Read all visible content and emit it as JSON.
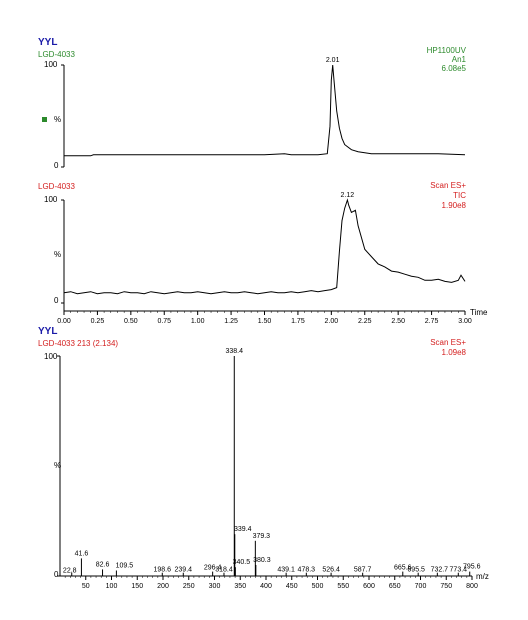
{
  "header": {
    "org": "YYL"
  },
  "panel1": {
    "sample": "LGD-4033",
    "detector": "HP1100UV",
    "channel": "An1",
    "intensity": "6.08e5",
    "peak_label": "2.01",
    "y_top": "100",
    "y_mid": "%",
    "y_zero": "0",
    "legend_color": "#2c8a2c"
  },
  "panel2": {
    "sample": "LGD-4033",
    "scan": "Scan ES+",
    "mode": "TIC",
    "intensity": "1.90e8",
    "peak_label": "2.12",
    "y_top": "100",
    "y_mid": "%",
    "y_zero": "0",
    "x_title": "Time"
  },
  "panel3": {
    "org": "YYL",
    "sample": "LGD-4033 213 (2.134)",
    "scan": "Scan ES+",
    "intensity": "1.09e8",
    "y_top": "100",
    "y_mid": "%",
    "y_zero": "0",
    "x_title": "m/z"
  },
  "chart_data": [
    {
      "type": "line",
      "title": "LGD-4033 HP1100UV An1",
      "xlim": [
        0,
        3.0
      ],
      "ylim": [
        0,
        100
      ],
      "x": [
        0.0,
        0.2,
        0.22,
        0.5,
        1.0,
        1.5,
        1.65,
        1.7,
        1.9,
        1.97,
        1.99,
        2.0,
        2.01,
        2.02,
        2.04,
        2.06,
        2.08,
        2.1,
        2.15,
        2.2,
        2.3,
        2.5,
        2.8,
        3.0
      ],
      "y": [
        11,
        11,
        12,
        12,
        12,
        12,
        13,
        12,
        12,
        13,
        40,
        85,
        100,
        85,
        55,
        38,
        28,
        22,
        17,
        15,
        13,
        13,
        13,
        12
      ],
      "annotations": [
        {
          "x": 2.01,
          "label": "2.01"
        }
      ]
    },
    {
      "type": "line",
      "title": "LGD-4033 Scan ES+ TIC",
      "xlabel": "Time",
      "xlim": [
        0,
        3.0
      ],
      "ylim": [
        0,
        100
      ],
      "xticks": [
        "0.00",
        "0.25",
        "0.50",
        "0.75",
        "1.00",
        "1.25",
        "1.50",
        "1.75",
        "2.00",
        "2.25",
        "2.50",
        "2.75",
        "3.00"
      ],
      "x": [
        0.0,
        0.05,
        0.1,
        0.15,
        0.2,
        0.25,
        0.3,
        0.35,
        0.4,
        0.45,
        0.5,
        0.55,
        0.6,
        0.65,
        0.7,
        0.75,
        0.8,
        0.85,
        0.9,
        0.95,
        1.0,
        1.05,
        1.1,
        1.15,
        1.2,
        1.25,
        1.3,
        1.35,
        1.4,
        1.45,
        1.5,
        1.55,
        1.6,
        1.65,
        1.7,
        1.75,
        1.8,
        1.85,
        1.9,
        1.95,
        2.0,
        2.04,
        2.06,
        2.08,
        2.1,
        2.12,
        2.13,
        2.15,
        2.18,
        2.2,
        2.25,
        2.3,
        2.35,
        2.4,
        2.45,
        2.5,
        2.55,
        2.6,
        2.65,
        2.7,
        2.75,
        2.8,
        2.85,
        2.9,
        2.95,
        2.97,
        3.0
      ],
      "y": [
        10,
        11,
        9,
        10,
        11,
        9,
        10,
        10,
        9,
        11,
        10,
        10,
        9,
        11,
        10,
        9,
        10,
        11,
        10,
        10,
        11,
        10,
        9,
        10,
        11,
        10,
        10,
        11,
        10,
        9,
        10,
        11,
        10,
        10,
        11,
        10,
        11,
        12,
        11,
        12,
        13,
        15,
        50,
        80,
        92,
        100,
        95,
        88,
        90,
        75,
        52,
        45,
        38,
        35,
        31,
        30,
        28,
        26,
        25,
        22,
        22,
        23,
        21,
        20,
        22,
        27,
        21
      ],
      "annotations": [
        {
          "x": 2.12,
          "label": "2.12"
        }
      ]
    },
    {
      "type": "bar",
      "title": "LGD-4033 213 (2.134) Scan ES+",
      "xlabel": "m/z",
      "xlim": [
        0,
        800
      ],
      "ylim": [
        0,
        100
      ],
      "xticks": [
        "50",
        "100",
        "150",
        "200",
        "250",
        "300",
        "350",
        "400",
        "450",
        "500",
        "550",
        "600",
        "650",
        "700",
        "750",
        "800"
      ],
      "peaks": [
        {
          "mz": 22.8,
          "rel": 1.5
        },
        {
          "mz": 41.6,
          "rel": 8
        },
        {
          "mz": 82.6,
          "rel": 3
        },
        {
          "mz": 109.5,
          "rel": 2.5
        },
        {
          "mz": 198.6,
          "rel": 1.5
        },
        {
          "mz": 239.4,
          "rel": 1.5
        },
        {
          "mz": 296.4,
          "rel": 2
        },
        {
          "mz": 318.4,
          "rel": 1.5
        },
        {
          "mz": 338.4,
          "rel": 100
        },
        {
          "mz": 339.4,
          "rel": 19
        },
        {
          "mz": 340.5,
          "rel": 4
        },
        {
          "mz": 379.3,
          "rel": 16
        },
        {
          "mz": 380.3,
          "rel": 5
        },
        {
          "mz": 439.1,
          "rel": 1.5
        },
        {
          "mz": 478.3,
          "rel": 1.5
        },
        {
          "mz": 526.4,
          "rel": 1.5
        },
        {
          "mz": 587.7,
          "rel": 1.5
        },
        {
          "mz": 665.6,
          "rel": 2
        },
        {
          "mz": 695.5,
          "rel": 1.5
        },
        {
          "mz": 732.7,
          "rel": 1.5
        },
        {
          "mz": 773.4,
          "rel": 1.5
        },
        {
          "mz": 795.6,
          "rel": 2
        }
      ]
    }
  ]
}
